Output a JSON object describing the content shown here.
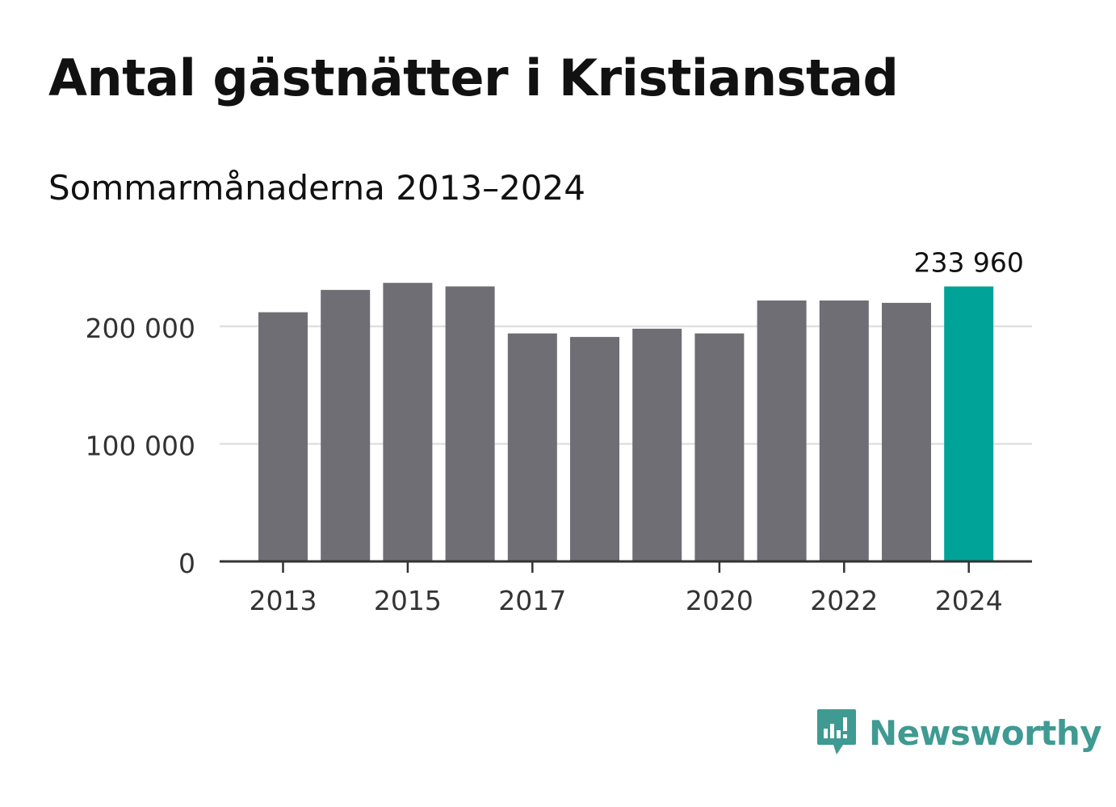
{
  "header": {
    "title": "Antal gästnätter i Kristianstad",
    "subtitle": "Sommarmånaderna 2013–2024"
  },
  "colors": {
    "bar": "#6f6e74",
    "highlight": "#00a398",
    "grid": "#e0e0e0",
    "axis": "#333333",
    "brand": "#3f9a92"
  },
  "chart_data": {
    "type": "bar",
    "categories": [
      "2013",
      "2014",
      "2015",
      "2016",
      "2017",
      "2018",
      "2019",
      "2020",
      "2021",
      "2022",
      "2023",
      "2024"
    ],
    "values": [
      212000,
      231000,
      237000,
      234000,
      194000,
      191000,
      198000,
      194000,
      222000,
      222000,
      220000,
      233960
    ],
    "highlight_index": 11,
    "highlight_label": "233 960",
    "x_tick_labels": [
      "2013",
      "2015",
      "2017",
      "2020",
      "2022",
      "2024"
    ],
    "y_ticks": [
      0,
      100000,
      200000
    ],
    "y_tick_labels": [
      "0",
      "100 000",
      "200 000"
    ],
    "ylim": [
      0,
      260000
    ],
    "grid": true
  },
  "brand": {
    "name": "Newsworthy",
    "icon": "newsworthy-logo-icon"
  }
}
